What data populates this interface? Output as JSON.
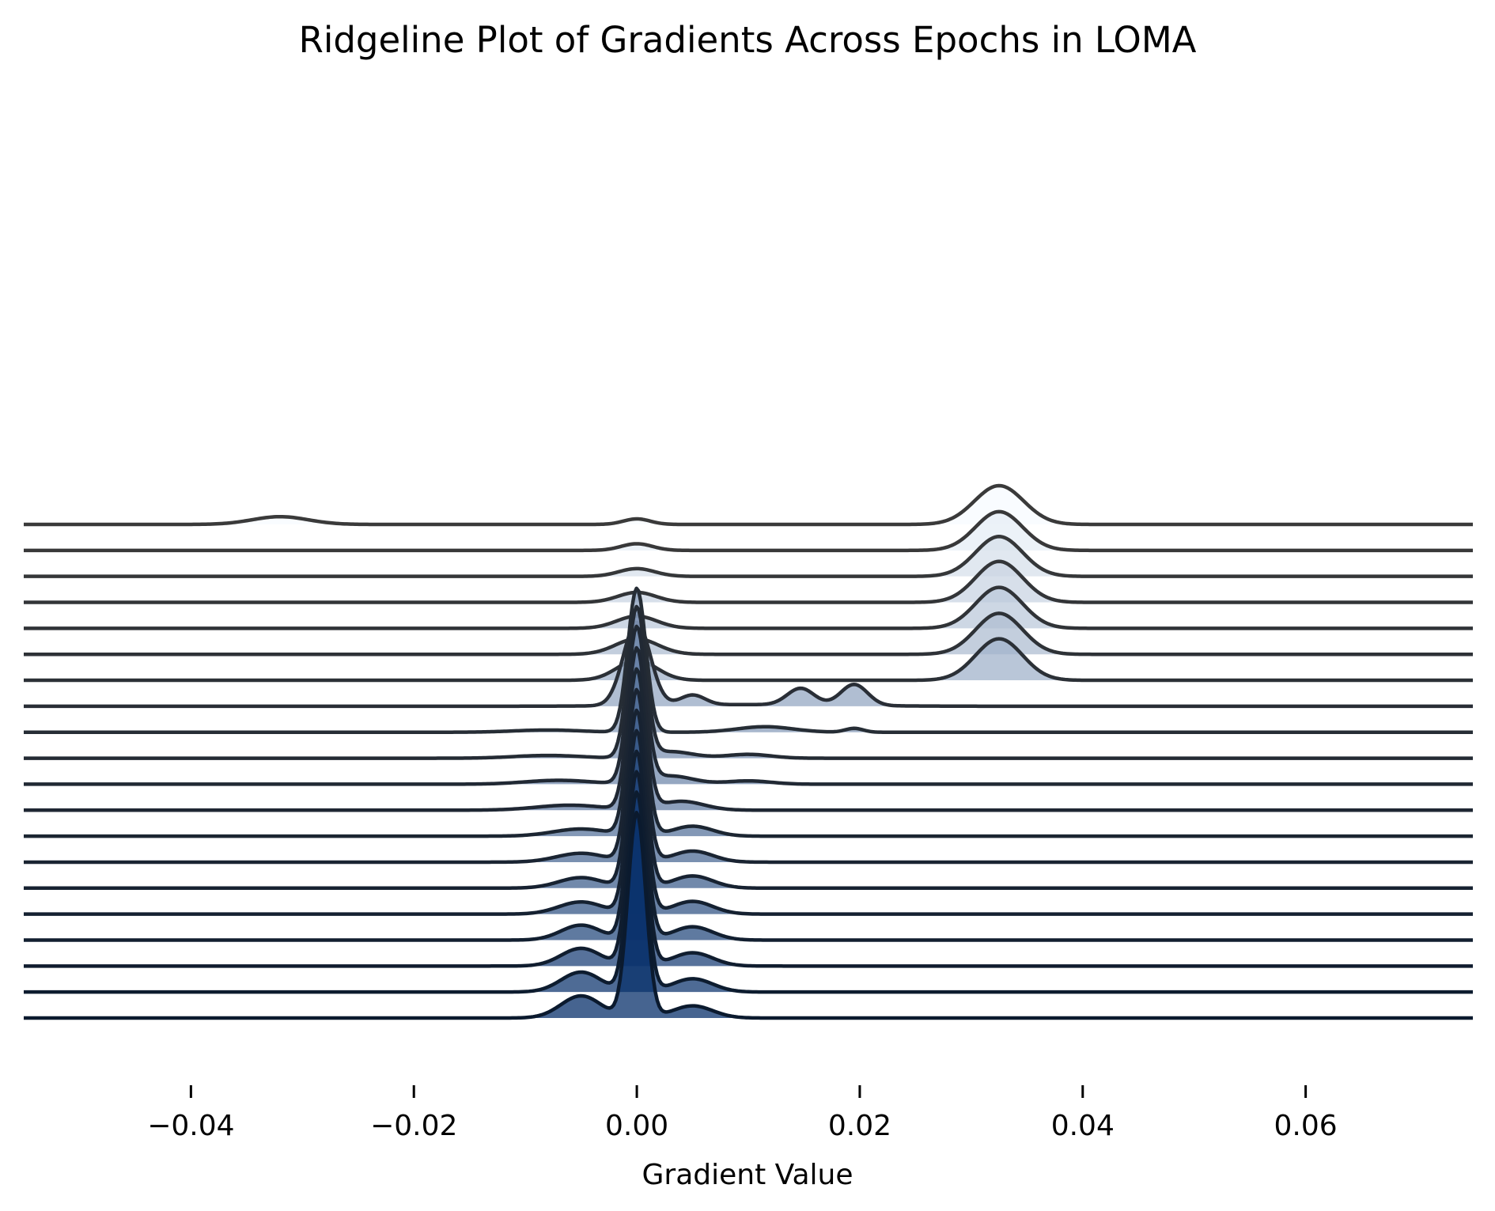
{
  "chart_data": {
    "type": "ridgeline",
    "title": "Ridgeline Plot of Gradients Across Epochs in LOMA",
    "xlabel": "Gradient Value",
    "ylabel": "",
    "xlim": [
      -0.055,
      0.075
    ],
    "x_ticks": [
      -0.04,
      -0.02,
      0.0,
      0.02,
      0.04,
      0.06
    ],
    "x_tick_labels": [
      "−0.04",
      "−0.02",
      "0.00",
      "0.02",
      "0.04",
      "0.06"
    ],
    "grid": false,
    "legend": "none",
    "colormap": "Blues",
    "colors": {
      "ridge_light": "#f7fbff",
      "ridge_dark": "#08306b",
      "outline": "#3a3a3a",
      "outline_dark": "#0b1a2e"
    },
    "ridges_top_to_bottom": [
      {
        "components": [
          {
            "mean": -0.032,
            "sd": 0.0025,
            "peak": 0.14
          },
          {
            "mean": 0.0,
            "sd": 0.0012,
            "peak": 0.1
          },
          {
            "mean": 0.0325,
            "sd": 0.0022,
            "peak": 0.7
          }
        ]
      },
      {
        "components": [
          {
            "mean": 0.0,
            "sd": 0.0014,
            "peak": 0.12
          },
          {
            "mean": 0.0325,
            "sd": 0.0021,
            "peak": 0.7
          }
        ]
      },
      {
        "components": [
          {
            "mean": 0.0,
            "sd": 0.0016,
            "peak": 0.14
          },
          {
            "mean": 0.0325,
            "sd": 0.0021,
            "peak": 0.72
          }
        ]
      },
      {
        "components": [
          {
            "mean": 0.0,
            "sd": 0.0017,
            "peak": 0.18
          },
          {
            "mean": 0.0325,
            "sd": 0.0021,
            "peak": 0.74
          }
        ]
      },
      {
        "components": [
          {
            "mean": 0.0,
            "sd": 0.0018,
            "peak": 0.22
          },
          {
            "mean": 0.0325,
            "sd": 0.0021,
            "peak": 0.74
          }
        ]
      },
      {
        "components": [
          {
            "mean": 0.0,
            "sd": 0.0019,
            "peak": 0.28
          },
          {
            "mean": 0.0325,
            "sd": 0.0021,
            "peak": 0.74
          }
        ]
      },
      {
        "components": [
          {
            "mean": 0.0,
            "sd": 0.0018,
            "peak": 0.36
          },
          {
            "mean": 0.0325,
            "sd": 0.0021,
            "peak": 0.75
          }
        ]
      },
      {
        "components": [
          {
            "mean": 0.0,
            "sd": 0.0012,
            "peak": 1.5
          },
          {
            "mean": 0.005,
            "sd": 0.0011,
            "peak": 0.18
          },
          {
            "mean": 0.0147,
            "sd": 0.0012,
            "peak": 0.3
          },
          {
            "mean": 0.0195,
            "sd": 0.0012,
            "peak": 0.38
          },
          {
            "mean": 0.01,
            "sd": 0.008,
            "peak": 0.03
          }
        ]
      },
      {
        "components": [
          {
            "mean": 0.0,
            "sd": 0.0008,
            "peak": 2.6
          },
          {
            "mean": 0.0115,
            "sd": 0.0025,
            "peak": 0.1
          },
          {
            "mean": 0.0195,
            "sd": 0.0008,
            "peak": 0.07
          },
          {
            "mean": -0.008,
            "sd": 0.003,
            "peak": 0.04
          }
        ]
      },
      {
        "components": [
          {
            "mean": 0.0,
            "sd": 0.0008,
            "peak": 2.7
          },
          {
            "mean": 0.003,
            "sd": 0.002,
            "peak": 0.12
          },
          {
            "mean": 0.01,
            "sd": 0.002,
            "peak": 0.07
          },
          {
            "mean": -0.008,
            "sd": 0.003,
            "peak": 0.05
          }
        ]
      },
      {
        "components": [
          {
            "mean": 0.0,
            "sd": 0.0008,
            "peak": 2.8
          },
          {
            "mean": 0.003,
            "sd": 0.002,
            "peak": 0.15
          },
          {
            "mean": 0.01,
            "sd": 0.002,
            "peak": 0.06
          },
          {
            "mean": -0.007,
            "sd": 0.003,
            "peak": 0.07
          }
        ]
      },
      {
        "components": [
          {
            "mean": 0.0,
            "sd": 0.0008,
            "peak": 2.9
          },
          {
            "mean": 0.004,
            "sd": 0.002,
            "peak": 0.16
          },
          {
            "mean": -0.006,
            "sd": 0.003,
            "peak": 0.09
          }
        ]
      },
      {
        "components": [
          {
            "mean": 0.0,
            "sd": 0.0008,
            "peak": 3.0
          },
          {
            "mean": 0.005,
            "sd": 0.0018,
            "peak": 0.18
          },
          {
            "mean": -0.005,
            "sd": 0.0025,
            "peak": 0.13
          }
        ]
      },
      {
        "components": [
          {
            "mean": 0.0,
            "sd": 0.0008,
            "peak": 3.1
          },
          {
            "mean": 0.005,
            "sd": 0.0018,
            "peak": 0.2
          },
          {
            "mean": -0.005,
            "sd": 0.0022,
            "peak": 0.16
          }
        ]
      },
      {
        "components": [
          {
            "mean": 0.0,
            "sd": 0.0008,
            "peak": 3.2
          },
          {
            "mean": 0.005,
            "sd": 0.0018,
            "peak": 0.22
          },
          {
            "mean": -0.005,
            "sd": 0.002,
            "peak": 0.19
          }
        ]
      },
      {
        "components": [
          {
            "mean": 0.0,
            "sd": 0.0008,
            "peak": 3.3
          },
          {
            "mean": 0.005,
            "sd": 0.0018,
            "peak": 0.23
          },
          {
            "mean": -0.005,
            "sd": 0.002,
            "peak": 0.22
          }
        ]
      },
      {
        "components": [
          {
            "mean": 0.0,
            "sd": 0.0008,
            "peak": 3.4
          },
          {
            "mean": 0.005,
            "sd": 0.0018,
            "peak": 0.24
          },
          {
            "mean": -0.005,
            "sd": 0.0018,
            "peak": 0.27
          }
        ]
      },
      {
        "components": [
          {
            "mean": 0.0,
            "sd": 0.0008,
            "peak": 3.5
          },
          {
            "mean": 0.005,
            "sd": 0.0018,
            "peak": 0.24
          },
          {
            "mean": -0.005,
            "sd": 0.0018,
            "peak": 0.32
          }
        ]
      },
      {
        "components": [
          {
            "mean": 0.0,
            "sd": 0.0008,
            "peak": 3.6
          },
          {
            "mean": 0.005,
            "sd": 0.0018,
            "peak": 0.24
          },
          {
            "mean": -0.005,
            "sd": 0.0018,
            "peak": 0.36
          }
        ]
      },
      {
        "components": [
          {
            "mean": 0.0,
            "sd": 0.0008,
            "peak": 3.7
          },
          {
            "mean": 0.005,
            "sd": 0.0018,
            "peak": 0.22
          },
          {
            "mean": -0.005,
            "sd": 0.0018,
            "peak": 0.4
          }
        ]
      }
    ]
  }
}
